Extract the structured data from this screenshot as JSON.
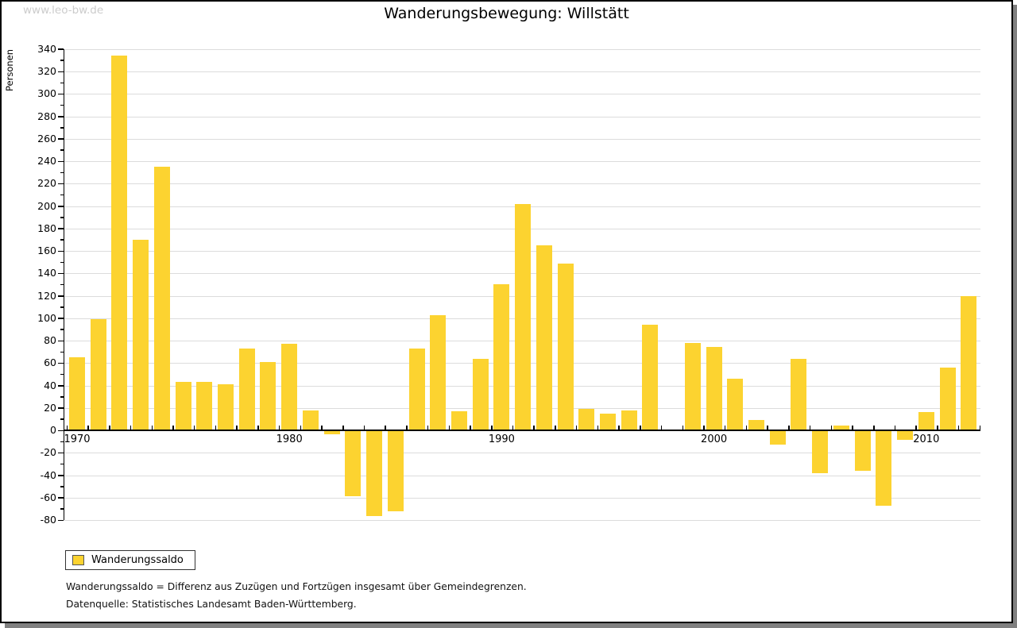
{
  "watermark": "www.leo-bw.de",
  "title": "Wanderungsbewegung: Willstätt",
  "legend": {
    "label": "Wanderungssaldo"
  },
  "footnotes": {
    "definition": "Wanderungssaldo = Differenz aus Zuzügen und Fortzügen insgesamt über Gemeindegrenzen.",
    "source": "Datenquelle: Statistisches Landesamt Baden-Württemberg."
  },
  "colors": {
    "bar": "#FCD330",
    "grid": "#DCDCDC",
    "axis": "#000000",
    "watermark": "#CCCCCC",
    "shadow": "#808080"
  },
  "chart_data": {
    "type": "bar",
    "title": "Wanderungsbewegung: Willstätt",
    "ylabel": "Personen",
    "series_name": "Wanderungssaldo",
    "ylim": [
      -80,
      340
    ],
    "ytick_step": 20,
    "ytick_minor_step": 10,
    "grid": true,
    "legend_position": "bottom-left",
    "x": [
      1970,
      1971,
      1972,
      1973,
      1974,
      1975,
      1976,
      1977,
      1978,
      1979,
      1980,
      1981,
      1982,
      1983,
      1984,
      1985,
      1986,
      1987,
      1988,
      1989,
      1990,
      1991,
      1992,
      1993,
      1994,
      1995,
      1996,
      1997,
      1998,
      1999,
      2000,
      2001,
      2002,
      2003,
      2004,
      2005,
      2006,
      2007,
      2008,
      2009,
      2010,
      2011,
      2012
    ],
    "values": [
      64,
      98,
      333,
      169,
      234,
      42,
      42,
      40,
      72,
      60,
      76,
      17,
      -3,
      -58,
      -76,
      -72,
      72,
      102,
      16,
      63,
      129,
      201,
      164,
      148,
      18,
      14,
      17,
      93,
      0,
      77,
      73,
      45,
      8,
      -12,
      63,
      -38,
      3,
      -36,
      -67,
      -8,
      15,
      55,
      119
    ],
    "xtick_labels": [
      1970,
      1980,
      1990,
      2000,
      2010
    ]
  }
}
